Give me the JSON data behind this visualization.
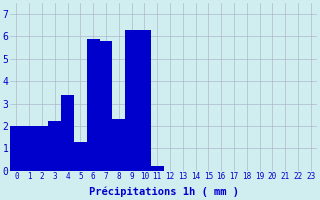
{
  "hours": [
    0,
    1,
    2,
    3,
    4,
    5,
    6,
    7,
    8,
    9,
    10,
    11,
    12,
    13,
    14,
    15,
    16,
    17,
    18,
    19,
    20,
    21,
    22,
    23
  ],
  "values": [
    2.0,
    2.0,
    2.0,
    2.2,
    3.4,
    1.3,
    5.9,
    5.8,
    2.3,
    6.3,
    6.3,
    0.2,
    0,
    0,
    0,
    0,
    0,
    0,
    0,
    0,
    0,
    0,
    0,
    0
  ],
  "bar_color": "#0000cc",
  "background_color": "#d0eef0",
  "grid_color": "#b0b8cc",
  "xlabel": "Précipitations 1h ( mm )",
  "ylim": [
    0,
    7.5
  ],
  "yticks": [
    0,
    1,
    2,
    3,
    4,
    5,
    6,
    7
  ],
  "xlabel_color": "#0000cc",
  "tick_color": "#0000cc",
  "tick_fontsize": 5.5,
  "ylabel_fontsize": 7,
  "xlabel_fontsize": 7.5
}
